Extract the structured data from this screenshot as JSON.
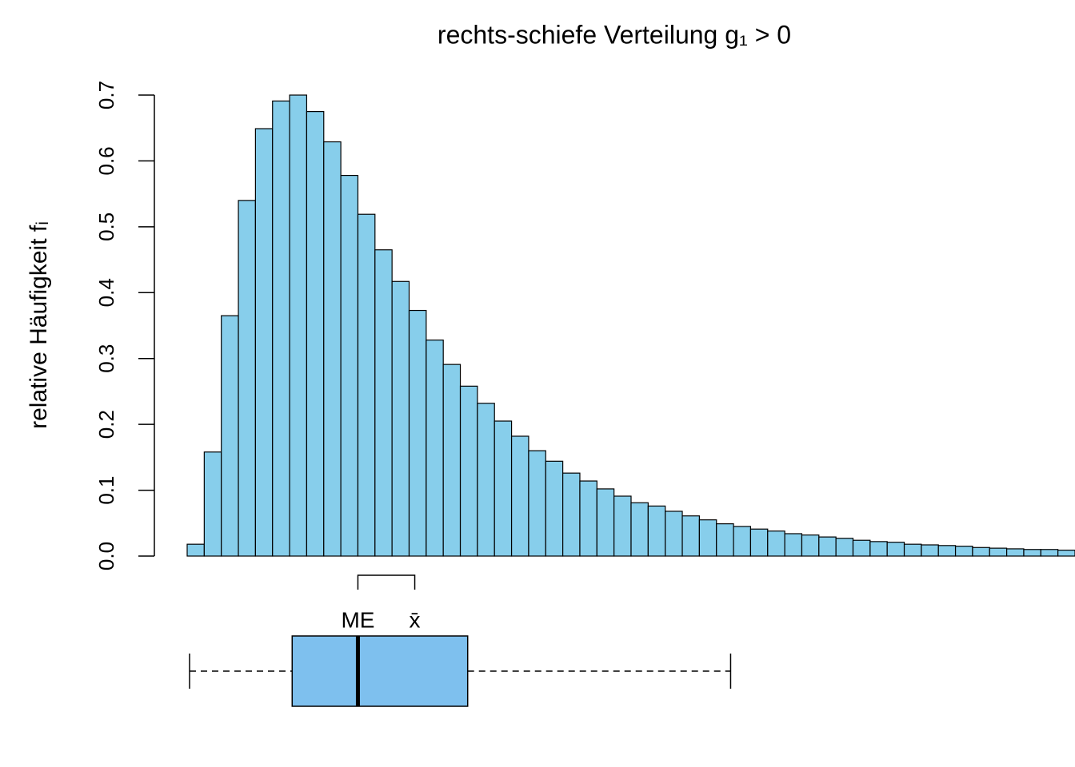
{
  "chart_data": {
    "type": "histogram",
    "title": "rechts-schiefe Verteilung g₁ > 0",
    "y_label": "relative Häufigkeit fᵢ",
    "bins": [
      0,
      1,
      2,
      3,
      4,
      5,
      6,
      7,
      8,
      9,
      10,
      11,
      12,
      13,
      14,
      15,
      16,
      17,
      18,
      19,
      20,
      21,
      22,
      23,
      24,
      25,
      26,
      27,
      28,
      29,
      30,
      31,
      32,
      33,
      34,
      35,
      36,
      37,
      38,
      39,
      40,
      41,
      42,
      43,
      44,
      45,
      46,
      47,
      48,
      49,
      50,
      51,
      52
    ],
    "values": [
      0.018,
      0.158,
      0.365,
      0.54,
      0.649,
      0.691,
      0.7,
      0.675,
      0.629,
      0.578,
      0.519,
      0.465,
      0.417,
      0.373,
      0.328,
      0.291,
      0.258,
      0.232,
      0.205,
      0.182,
      0.16,
      0.144,
      0.126,
      0.114,
      0.102,
      0.091,
      0.081,
      0.076,
      0.068,
      0.061,
      0.055,
      0.049,
      0.045,
      0.041,
      0.038,
      0.034,
      0.032,
      0.029,
      0.027,
      0.024,
      0.022,
      0.021,
      0.018,
      0.017,
      0.016,
      0.015,
      0.013,
      0.012,
      0.011,
      0.01,
      0.01,
      0.009
    ],
    "color": "#87ceeb",
    "xlim": [
      0,
      52
    ],
    "ylim": [
      0,
      0.7
    ],
    "yticks": [
      {
        "value": 0,
        "label": "0.0"
      },
      0.1,
      0.2,
      0.3,
      0.4,
      0.5,
      0.6,
      0.7
    ],
    "boxplot": {
      "whisker_low": 0.14,
      "q1": 6.15,
      "median": 10.0,
      "q3": 16.43,
      "whisker_high": 31.83,
      "mean": 13.33,
      "median_label": "ME",
      "mean_label": "x̄",
      "color": "#7ec0ee"
    }
  }
}
